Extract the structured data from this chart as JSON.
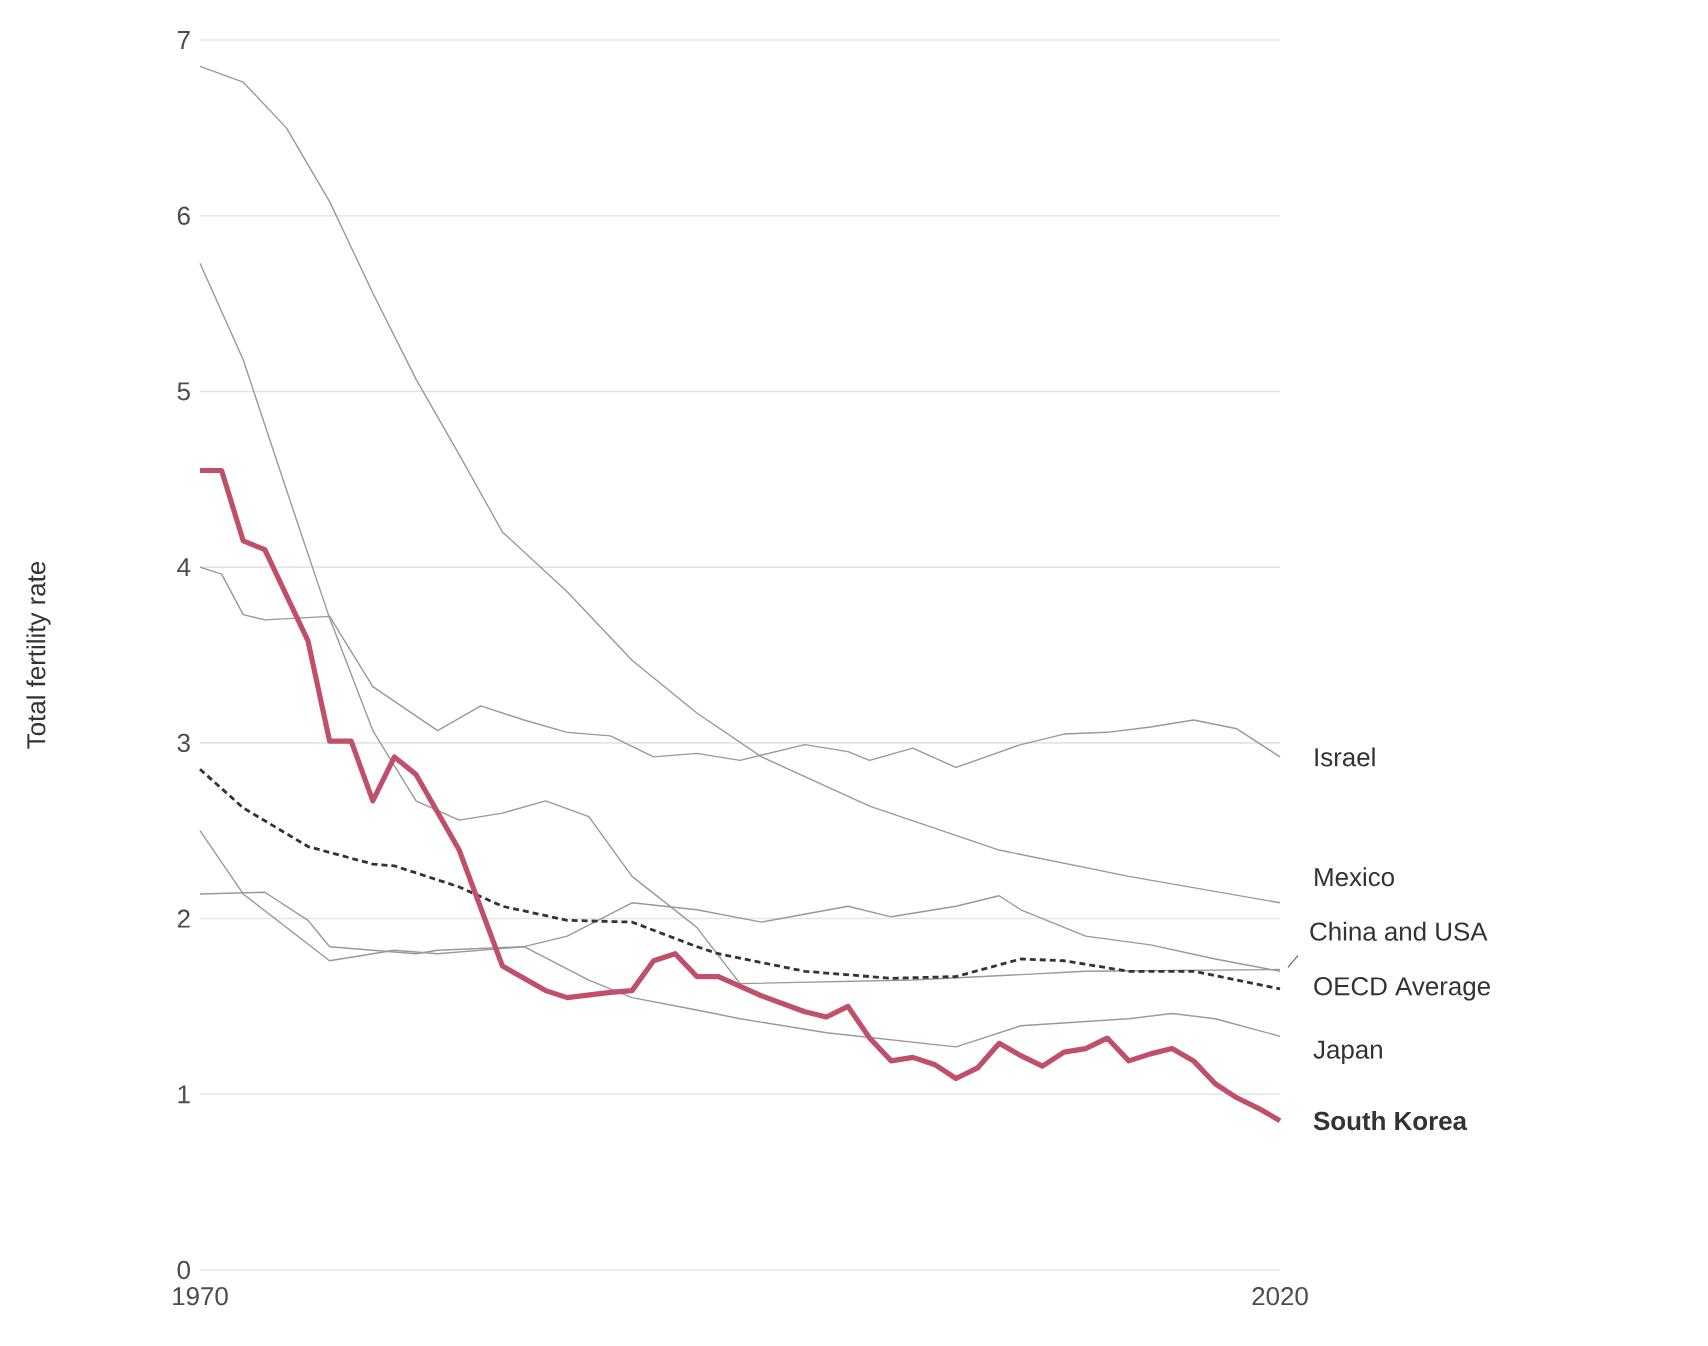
{
  "chart_data": {
    "type": "line",
    "ylabel": "Total fertility rate",
    "xlim": [
      1970,
      2020
    ],
    "xticks": [
      1970,
      2020
    ],
    "ylim": [
      0,
      7
    ],
    "yticks": [
      0,
      1,
      2,
      3,
      4,
      5,
      6,
      7
    ],
    "grid": "y",
    "annotations": [
      {
        "text": "China and USA",
        "x": 2020,
        "y": 1.7
      }
    ],
    "series": [
      {
        "name": "Israel",
        "color": "#999999",
        "x": [
          1970,
          1971,
          1972,
          1973,
          1976,
          1978,
          1981,
          1983,
          1985,
          1987,
          1989,
          1991,
          1993,
          1995,
          1998,
          2000,
          2001,
          2003,
          2005,
          2008,
          2010,
          2012,
          2014,
          2016,
          2018,
          2020
        ],
        "values": [
          4.0,
          3.96,
          3.73,
          3.7,
          3.72,
          3.32,
          3.07,
          3.21,
          3.13,
          3.06,
          3.04,
          2.92,
          2.94,
          2.9,
          2.99,
          2.95,
          2.9,
          2.97,
          2.86,
          2.99,
          3.05,
          3.06,
          3.09,
          3.13,
          3.08,
          2.92
        ]
      },
      {
        "name": "Mexico",
        "color": "#999999",
        "x": [
          1970,
          1972,
          1974,
          1976,
          1978,
          1980,
          1982,
          1984,
          1987,
          1990,
          1993,
          1996,
          2001,
          2007,
          2013,
          2020
        ],
        "values": [
          6.85,
          6.76,
          6.5,
          6.08,
          5.56,
          5.07,
          4.64,
          4.2,
          3.86,
          3.47,
          3.17,
          2.92,
          2.64,
          2.39,
          2.24,
          2.09
        ]
      },
      {
        "color": "#999999",
        "x": [
          1970,
          1972,
          1974,
          1976,
          1978,
          1980,
          1982,
          1984,
          1986,
          1988,
          1990,
          1993,
          1995,
          2003,
          2011,
          2020
        ],
        "values": [
          5.73,
          5.18,
          4.44,
          3.71,
          3.07,
          2.67,
          2.56,
          2.6,
          2.67,
          2.58,
          2.24,
          1.95,
          1.63,
          1.65,
          1.7,
          1.71
        ]
      },
      {
        "color": "#999999",
        "x": [
          1970,
          1972,
          1976,
          1979,
          1981,
          1985,
          1987,
          1990,
          1993,
          1996,
          2000,
          2002,
          2005,
          2007,
          2008,
          2011,
          2014,
          2017,
          2020
        ],
        "values": [
          2.5,
          2.14,
          1.76,
          1.82,
          1.8,
          1.84,
          1.9,
          2.09,
          2.05,
          1.98,
          2.07,
          2.01,
          2.07,
          2.13,
          2.05,
          1.9,
          1.85,
          1.77,
          1.7
        ]
      },
      {
        "name": "Japan",
        "color": "#999999",
        "x": [
          1970,
          1973,
          1975,
          1976,
          1980,
          1981,
          1985,
          1988,
          1990,
          1993,
          1995,
          1999,
          2005,
          2008,
          2013,
          2015,
          2017,
          2020
        ],
        "values": [
          2.14,
          2.15,
          1.99,
          1.84,
          1.8,
          1.82,
          1.84,
          1.65,
          1.55,
          1.48,
          1.43,
          1.35,
          1.27,
          1.39,
          1.43,
          1.46,
          1.43,
          1.33
        ]
      },
      {
        "name": "OECD Average",
        "color": "#333333",
        "line_style": "dashed",
        "x": [
          1970,
          1972,
          1975,
          1978,
          1979,
          1982,
          1984,
          1987,
          1990,
          1993,
          1994,
          1998,
          2002,
          2005,
          2008,
          2010,
          2013,
          2016,
          2020
        ],
        "values": [
          2.85,
          2.63,
          2.41,
          2.31,
          2.3,
          2.18,
          2.07,
          1.99,
          1.98,
          1.84,
          1.8,
          1.7,
          1.66,
          1.67,
          1.77,
          1.76,
          1.7,
          1.7,
          1.6
        ]
      },
      {
        "name": "**South Korea**",
        "color": "#c0506a",
        "x": [
          1970,
          1971,
          1972,
          1973,
          1975,
          1976,
          1977,
          1978,
          1979,
          1980,
          1982,
          1984,
          1986,
          1987,
          1989,
          1990,
          1991,
          1992,
          1993,
          1994,
          1996,
          1998,
          1999,
          2000,
          2001,
          2002,
          2003,
          2004,
          2005,
          2006,
          2007,
          2008,
          2009,
          2010,
          2011,
          2012,
          2013,
          2014,
          2015,
          2016,
          2017,
          2018,
          2019,
          2020
        ],
        "values": [
          4.55,
          4.55,
          4.15,
          4.1,
          3.58,
          3.01,
          3.01,
          2.67,
          2.92,
          2.82,
          2.39,
          1.73,
          1.59,
          1.55,
          1.58,
          1.59,
          1.76,
          1.8,
          1.67,
          1.67,
          1.56,
          1.47,
          1.44,
          1.5,
          1.32,
          1.19,
          1.21,
          1.17,
          1.09,
          1.15,
          1.29,
          1.22,
          1.16,
          1.24,
          1.26,
          1.32,
          1.19,
          1.23,
          1.26,
          1.19,
          1.06,
          0.98,
          0.92,
          0.85
        ]
      }
    ]
  }
}
